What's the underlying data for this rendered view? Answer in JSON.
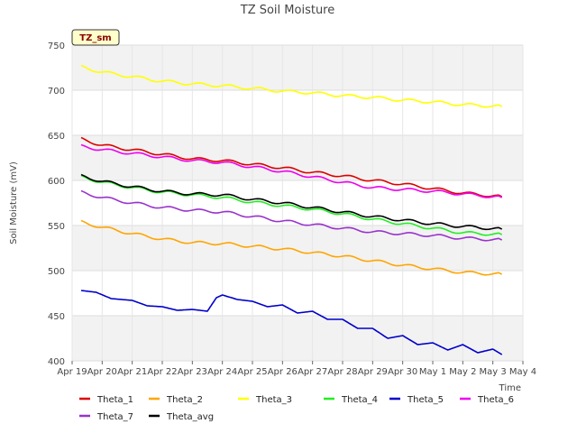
{
  "chart_data": {
    "type": "line",
    "title": "TZ Soil Moisture",
    "xlabel": "Time",
    "ylabel": "Soil Moisture (mV)",
    "badge": "TZ_sm",
    "ylim": [
      400,
      750
    ],
    "yticks": [
      400,
      450,
      500,
      550,
      600,
      650,
      700,
      750
    ],
    "xlim": [
      0,
      15
    ],
    "xticks": [
      {
        "x": 0,
        "label": "Apr 19"
      },
      {
        "x": 1,
        "label": "Apr 20"
      },
      {
        "x": 2,
        "label": "Apr 21"
      },
      {
        "x": 3,
        "label": "Apr 22"
      },
      {
        "x": 4,
        "label": "Apr 23"
      },
      {
        "x": 5,
        "label": "Apr 24"
      },
      {
        "x": 6,
        "label": "Apr 25"
      },
      {
        "x": 7,
        "label": "Apr 26"
      },
      {
        "x": 8,
        "label": "Apr 27"
      },
      {
        "x": 9,
        "label": "Apr 28"
      },
      {
        "x": 10,
        "label": "Apr 29"
      },
      {
        "x": 11,
        "label": "Apr 30"
      },
      {
        "x": 12,
        "label": "May 1"
      },
      {
        "x": 13,
        "label": "May 2"
      },
      {
        "x": 14,
        "label": "May 3"
      },
      {
        "x": 15,
        "label": "May 4"
      }
    ],
    "series": [
      {
        "name": "Theta_1",
        "color": "#dd0000",
        "x": [
          0.3,
          1.0,
          2.0,
          3.0,
          4.0,
          5.0,
          6.0,
          7.0,
          8.0,
          9.0,
          10.0,
          11.0,
          12.0,
          13.0,
          14.3
        ],
        "y": [
          646,
          639,
          634,
          629,
          624,
          622,
          618,
          614,
          609,
          605,
          600,
          596,
          591,
          586,
          582
        ]
      },
      {
        "name": "Theta_2",
        "color": "#ffa500",
        "x": [
          0.3,
          1.0,
          2.0,
          3.0,
          4.0,
          5.0,
          6.0,
          7.0,
          8.0,
          9.0,
          10.0,
          11.0,
          12.0,
          13.0,
          14.3
        ],
        "y": [
          554,
          548,
          541,
          535,
          531,
          530,
          527,
          524,
          520,
          516,
          511,
          506,
          502,
          498,
          496
        ]
      },
      {
        "name": "Theta_3",
        "color": "#ffff00",
        "x": [
          0.3,
          1.0,
          2.0,
          3.0,
          4.0,
          5.0,
          6.0,
          7.0,
          8.0,
          9.0,
          10.0,
          11.0,
          12.0,
          13.0,
          14.3
        ],
        "y": [
          726,
          720,
          715,
          710,
          707,
          705,
          702,
          699,
          697,
          694,
          692,
          689,
          687,
          684,
          682
        ]
      },
      {
        "name": "Theta_4",
        "color": "#22ee22",
        "x": [
          0.3,
          1.0,
          2.0,
          3.0,
          4.0,
          5.0,
          6.0,
          7.0,
          8.0,
          9.0,
          10.0,
          11.0,
          12.0,
          13.0,
          14.3
        ],
        "y": [
          604,
          598,
          592,
          587,
          584,
          581,
          576,
          572,
          568,
          563,
          557,
          552,
          547,
          542,
          540
        ]
      },
      {
        "name": "Theta_5",
        "color": "#0000cc",
        "x": [
          0.3,
          0.8,
          1.3,
          2.0,
          2.5,
          3.0,
          3.5,
          4.0,
          4.5,
          4.8,
          5.0,
          5.5,
          6.0,
          6.5,
          7.0,
          7.5,
          8.0,
          8.5,
          9.0,
          9.5,
          10.0,
          10.5,
          11.0,
          11.5,
          12.0,
          12.5,
          13.0,
          13.5,
          14.0,
          14.3
        ],
        "y": [
          478,
          476,
          469,
          467,
          461,
          460,
          456,
          457,
          455,
          470,
          473,
          468,
          466,
          460,
          462,
          453,
          455,
          446,
          446,
          436,
          436,
          425,
          428,
          418,
          420,
          412,
          418,
          409,
          413,
          407
        ]
      },
      {
        "name": "Theta_6",
        "color": "#ee00ee",
        "x": [
          0.3,
          1.0,
          2.0,
          3.0,
          4.0,
          5.0,
          6.0,
          7.0,
          8.0,
          9.0,
          10.0,
          11.0,
          12.0,
          13.0,
          14.3
        ],
        "y": [
          638,
          634,
          630,
          626,
          622,
          620,
          615,
          610,
          604,
          598,
          592,
          590,
          588,
          585,
          581
        ]
      },
      {
        "name": "Theta_7",
        "color": "#9933cc",
        "x": [
          0.3,
          1.0,
          2.0,
          3.0,
          4.0,
          5.0,
          6.0,
          7.0,
          8.0,
          9.0,
          10.0,
          11.0,
          12.0,
          13.0,
          14.3
        ],
        "y": [
          587,
          581,
          575,
          570,
          567,
          565,
          560,
          555,
          551,
          547,
          543,
          541,
          539,
          536,
          534
        ]
      },
      {
        "name": "Theta_avg",
        "color": "#000000",
        "x": [
          0.3,
          1.0,
          2.0,
          3.0,
          4.0,
          5.0,
          6.0,
          7.0,
          8.0,
          9.0,
          10.0,
          11.0,
          12.0,
          13.0,
          14.3
        ],
        "y": [
          605,
          599,
          593,
          588,
          585,
          584,
          579,
          575,
          570,
          565,
          560,
          556,
          552,
          549,
          546
        ]
      }
    ]
  }
}
